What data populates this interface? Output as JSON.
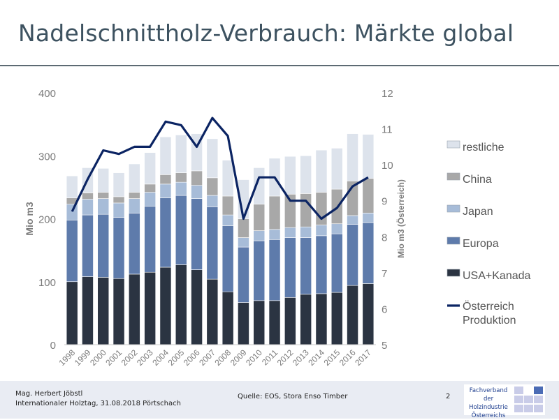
{
  "slide": {
    "title": "Nadelschnittholz-Verbrauch: Märkte global",
    "footer": {
      "author": "Mag. Herbert Jöbstl",
      "event": "Internationaler Holztag, 31.08.2018 Pörtschach",
      "source": "Quelle: EOS, Stora Enso Timber",
      "page": "2",
      "logo_lines": [
        "Fachverband",
        "der Holzindustrie",
        "Österreichs"
      ]
    }
  },
  "colors": {
    "usa_kanada": "#2b3442",
    "europa": "#5e7bab",
    "japan": "#a7bcd8",
    "china": "#a8a8a8",
    "restliche": "#dde3ec",
    "line": "#0b2463"
  },
  "chart_data": {
    "type": "bar",
    "stacked": true,
    "categories": [
      "1998",
      "1999",
      "2000",
      "2001",
      "2002",
      "2003",
      "2004",
      "2005",
      "2006",
      "2007",
      "2008",
      "2009",
      "2010",
      "2011",
      "2012",
      "2013",
      "2014",
      "2015",
      "2016",
      "2017"
    ],
    "series": [
      {
        "name": "USA+Kanada",
        "key": "usa_kanada",
        "values": [
          100,
          108,
          107,
          105,
          112,
          115,
          123,
          127,
          119,
          104,
          84,
          67,
          70,
          70,
          75,
          80,
          81,
          83,
          94,
          97
        ]
      },
      {
        "name": "Europa",
        "key": "europa",
        "values": [
          98,
          98,
          100,
          97,
          97,
          105,
          110,
          110,
          113,
          115,
          105,
          88,
          95,
          97,
          95,
          90,
          92,
          93,
          97,
          97
        ]
      },
      {
        "name": "Japan",
        "key": "japan",
        "values": [
          25,
          25,
          25,
          23,
          23,
          22,
          22,
          21,
          21,
          18,
          17,
          15,
          16,
          16,
          16,
          17,
          17,
          16,
          14,
          15
        ]
      },
      {
        "name": "China",
        "key": "china",
        "values": [
          10,
          10,
          10,
          10,
          10,
          13,
          15,
          15,
          23,
          28,
          30,
          30,
          42,
          53,
          53,
          53,
          52,
          55,
          55,
          55
        ]
      },
      {
        "name": "restliche",
        "key": "restliche",
        "values": [
          35,
          40,
          38,
          38,
          45,
          50,
          60,
          60,
          59,
          62,
          57,
          62,
          58,
          60,
          60,
          60,
          67,
          65,
          75,
          70
        ]
      }
    ],
    "line": {
      "name": "Österreich Produktion",
      "key": "line",
      "axis": "right",
      "values": [
        8.7,
        9.6,
        10.4,
        10.3,
        10.5,
        10.5,
        11.2,
        11.1,
        10.5,
        11.3,
        10.8,
        8.5,
        9.65,
        9.65,
        9.0,
        9.0,
        8.5,
        8.8,
        9.4,
        9.65
      ]
    },
    "ylabel": "Mio m3",
    "y2label": "Mio m3 (Österreich)",
    "ylim": [
      0,
      400
    ],
    "y2lim": [
      5,
      12
    ],
    "yticks": [
      0,
      100,
      200,
      300,
      400
    ],
    "y2ticks": [
      5,
      6,
      7,
      8,
      9,
      10,
      11,
      12
    ],
    "legend": {
      "position": "right",
      "order": [
        "restliche",
        "China",
        "Japan",
        "Europa",
        "USA+Kanada",
        "Österreich Produktion"
      ]
    },
    "grid": false
  }
}
